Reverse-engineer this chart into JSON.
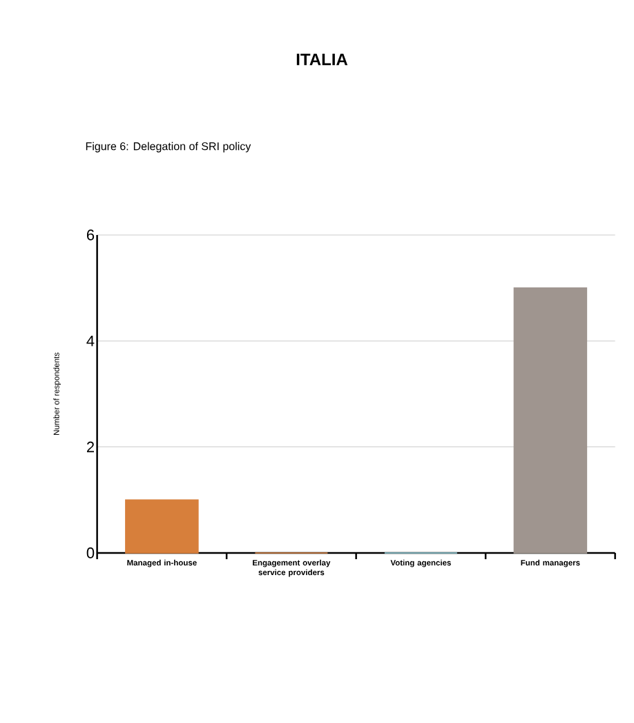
{
  "chart_data": {
    "type": "bar",
    "title": "ITALIA",
    "subtitle": "Figure 6: Delegation of SRI policy",
    "ylabel": "Number of respondents",
    "categories": [
      "Managed in-house",
      "Engagement overlay service providers",
      "Voting agencies",
      "Fund managers"
    ],
    "values": [
      1,
      0,
      0,
      5
    ],
    "colors": [
      "#d77f3b",
      "#d77f3b",
      "#8ecfdc",
      "#9f958f"
    ],
    "ylim": [
      0,
      6
    ],
    "yticks": [
      0,
      2,
      4,
      6
    ],
    "grid": "y"
  }
}
